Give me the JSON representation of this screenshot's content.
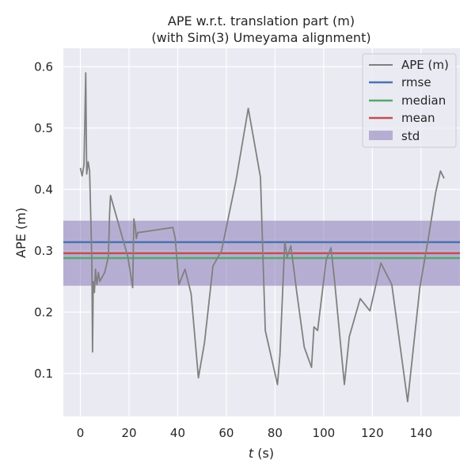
{
  "chart_data": {
    "type": "line",
    "title_line1": "APE w.r.t. translation part (m)",
    "title_line2": "(with Sim(3) Umeyama alignment)",
    "xlabel_italic": "t",
    "xlabel_unit": " (s)",
    "ylabel": "APE (m)",
    "xlim": [
      -7,
      156
    ],
    "ylim": [
      0.03,
      0.63
    ],
    "xticks": [
      0,
      20,
      40,
      60,
      80,
      100,
      120,
      140
    ],
    "yticks": [
      0.1,
      0.2,
      0.3,
      0.4,
      0.5,
      0.6
    ],
    "grid": true,
    "legend_position": "top-right",
    "series": [
      {
        "name": "APE (m)",
        "color": "#808080",
        "x": [
          0,
          0.7,
          1.5,
          2.2,
          2.6,
          3.2,
          3.8,
          4.7,
          5.0,
          5.3,
          5.8,
          6.2,
          6.8,
          7.4,
          8.0,
          10,
          11.5,
          12.0,
          12.4,
          19.5,
          21.5,
          22.0,
          22.6,
          23.0,
          23.6,
          24.5,
          38,
          39,
          40.5,
          43,
          45.5,
          48.5,
          51,
          54.5,
          58,
          64,
          69,
          74,
          76,
          81,
          82,
          84,
          85,
          86.5,
          89,
          92,
          95,
          96,
          97.5,
          101,
          103,
          104.5,
          108.5,
          110.5,
          115,
          119,
          123.5,
          128,
          134.5,
          139.5,
          143,
          146,
          148,
          149.5
        ],
        "y": [
          0.435,
          0.422,
          0.44,
          0.59,
          0.425,
          0.445,
          0.43,
          0.285,
          0.135,
          0.25,
          0.232,
          0.27,
          0.245,
          0.265,
          0.25,
          0.265,
          0.29,
          0.36,
          0.39,
          0.29,
          0.24,
          0.352,
          0.338,
          0.32,
          0.33,
          0.33,
          0.338,
          0.32,
          0.245,
          0.27,
          0.23,
          0.093,
          0.15,
          0.275,
          0.3,
          0.415,
          0.532,
          0.42,
          0.17,
          0.082,
          0.13,
          0.315,
          0.29,
          0.308,
          0.23,
          0.143,
          0.11,
          0.176,
          0.17,
          0.285,
          0.305,
          0.25,
          0.082,
          0.16,
          0.222,
          0.202,
          0.28,
          0.245,
          0.054,
          0.24,
          0.32,
          0.395,
          0.43,
          0.418
        ]
      },
      {
        "name": "rmse",
        "color": "#4c72b0",
        "value": 0.314
      },
      {
        "name": "median",
        "color": "#55a868",
        "value": 0.288
      },
      {
        "name": "mean",
        "color": "#c44e52",
        "value": 0.296
      },
      {
        "name": "std",
        "color": "#8172b2",
        "range": [
          0.243,
          0.349
        ]
      }
    ]
  }
}
